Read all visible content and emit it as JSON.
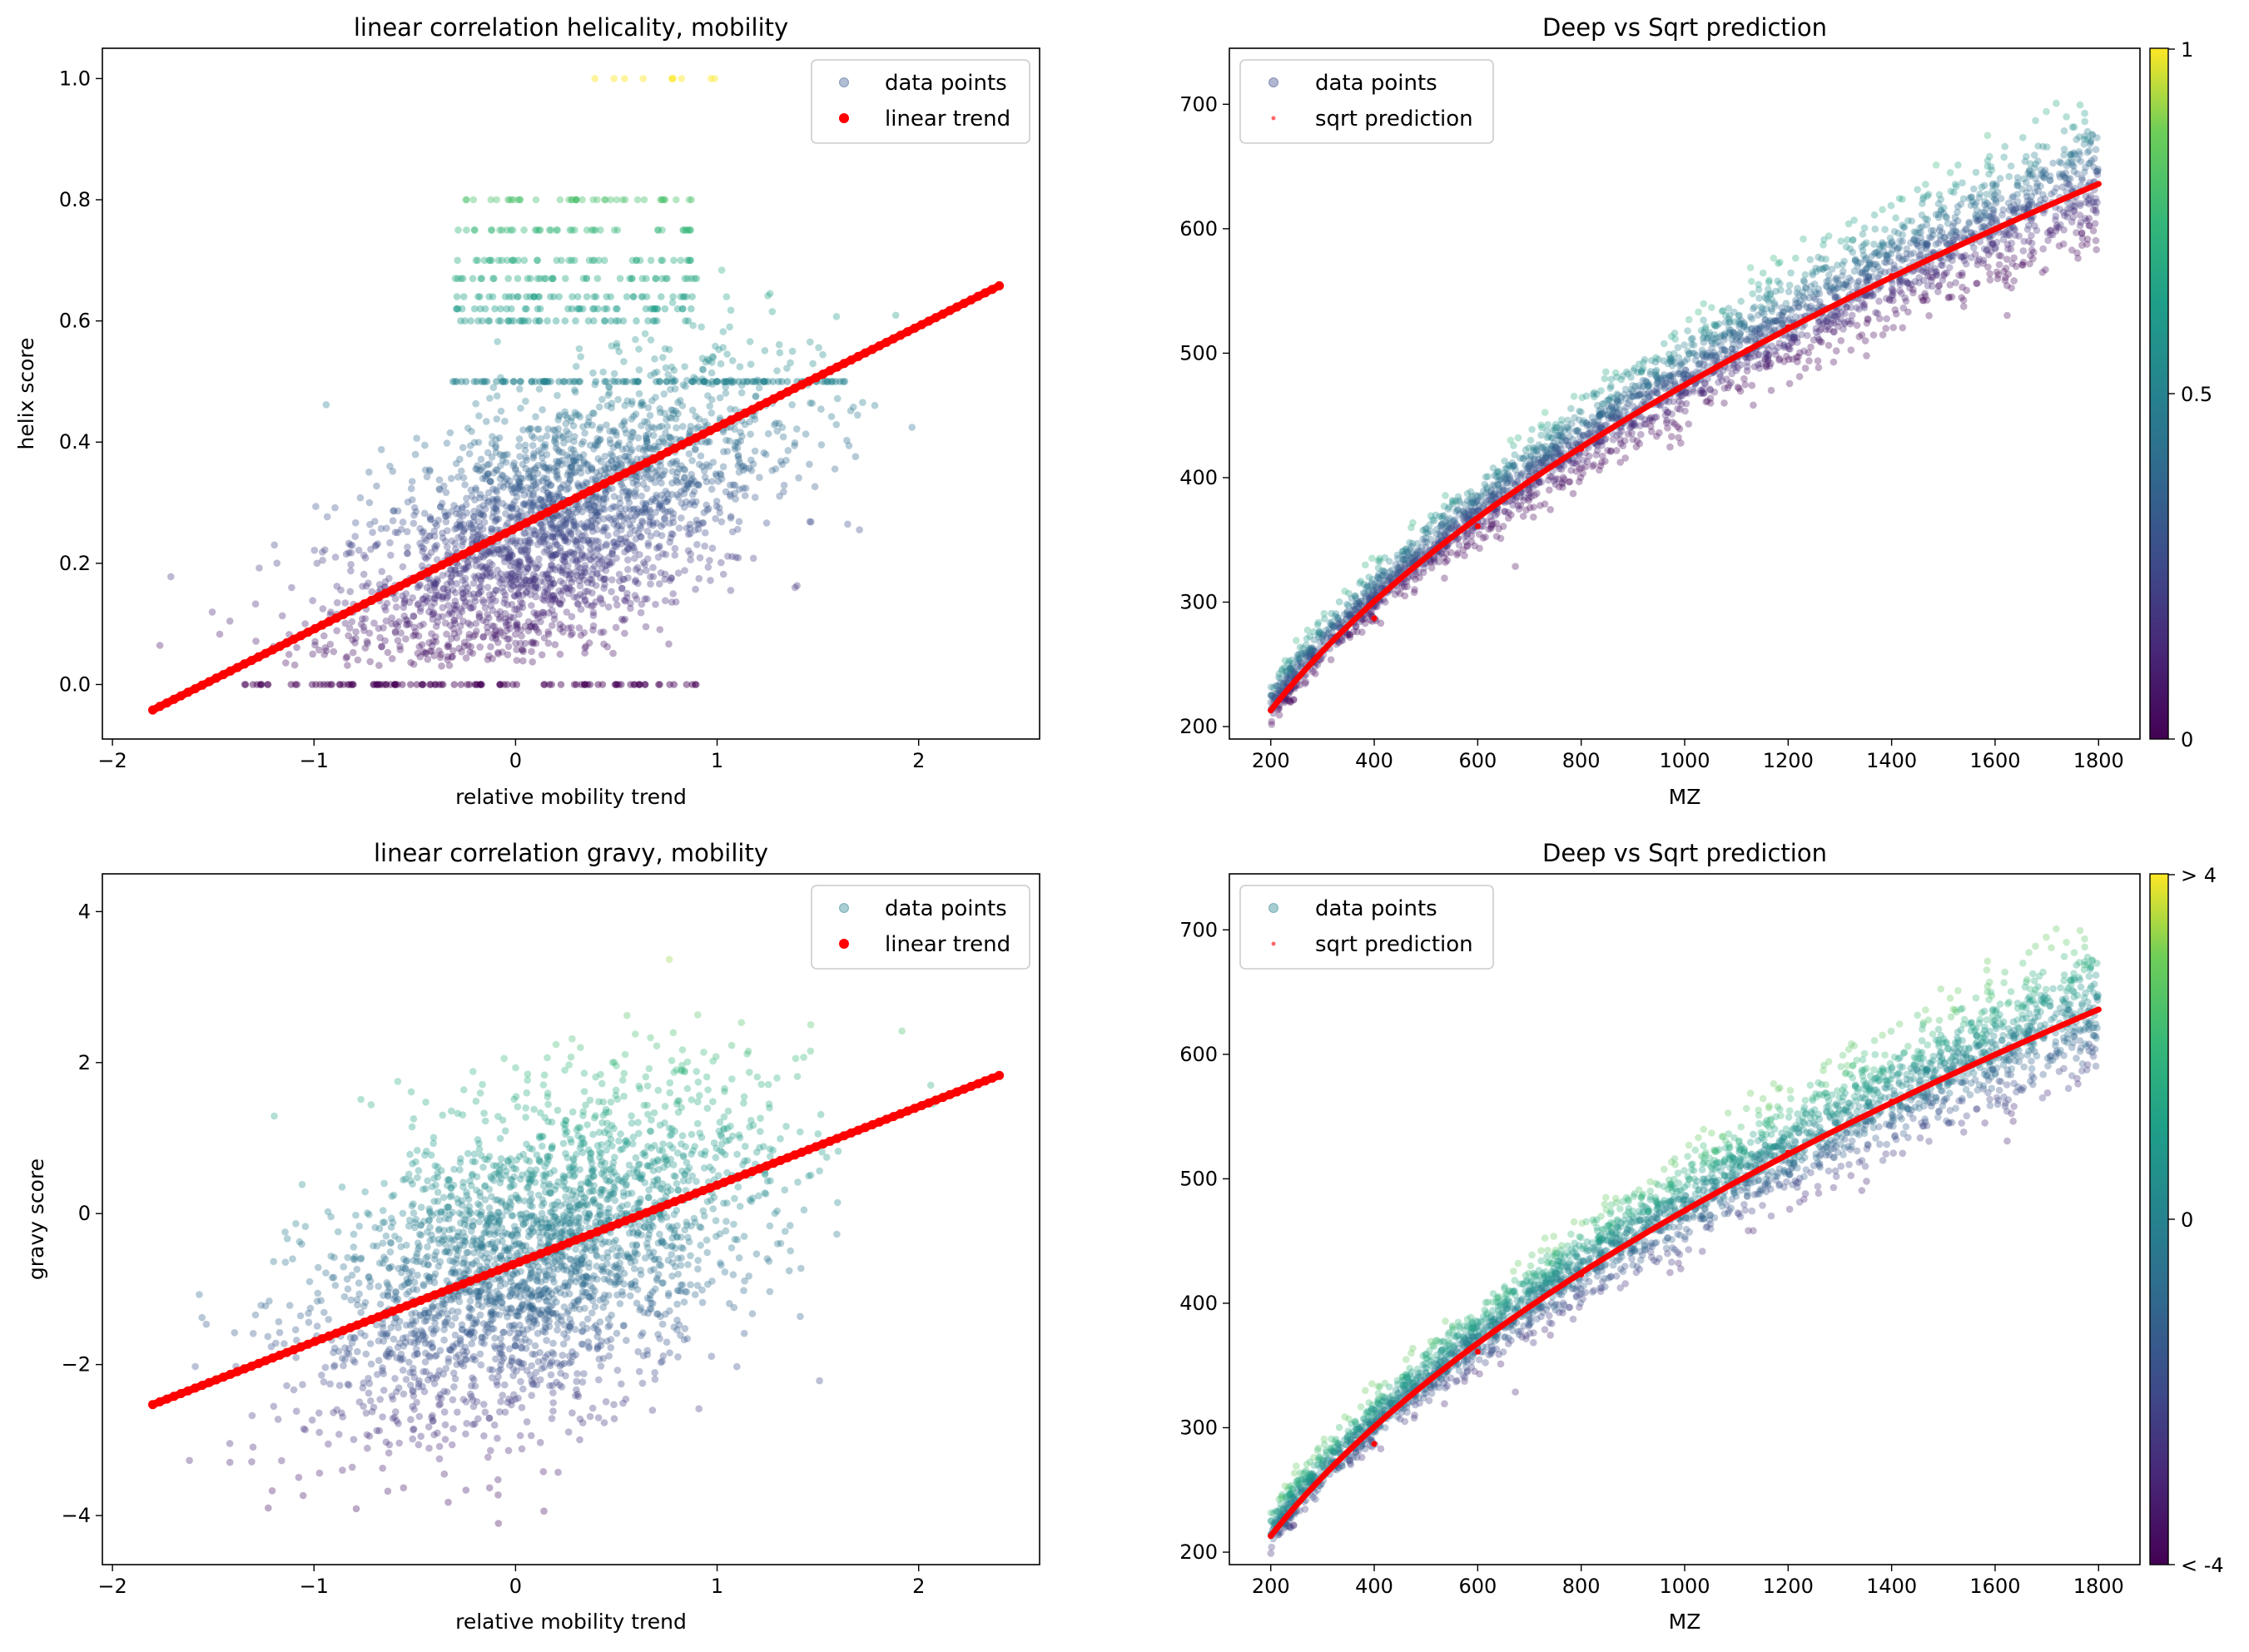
{
  "chart_data": [
    {
      "type": "scatter",
      "title": "linear correlation helicality, mobility",
      "xlabel": "relative mobility trend",
      "ylabel": "helix score",
      "xlim": [
        -2.05,
        2.6
      ],
      "ylim": [
        -0.09,
        1.05
      ],
      "xticks": [
        -2,
        -1,
        0,
        1,
        2
      ],
      "yticks": [
        0.0,
        0.2,
        0.4,
        0.6,
        0.8,
        1.0
      ],
      "xtick_labels": [
        "−2",
        "−1",
        "0",
        "1",
        "2"
      ],
      "ytick_labels": [
        "0.0",
        "0.2",
        "0.4",
        "0.6",
        "0.8",
        "1.0"
      ],
      "legend_position": "upper right",
      "grid": false,
      "series": [
        {
          "name": "data points",
          "kind": "scatter-cloud",
          "colormap": "viridis",
          "color_value": "y",
          "cmin": 0.0,
          "cmax": 1.0,
          "cloud": {
            "x_center": 0.15,
            "x_spread": 0.55,
            "slope": 0.16,
            "intercept": 0.22,
            "y_spread": 0.11,
            "y_min": 0.03,
            "y_max": 0.87
          },
          "bands": [
            {
              "y": 0.0,
              "x_range": [
                -1.35,
                0.9
              ]
            },
            {
              "y": 1.0,
              "x_range": [
                0.35,
                1.1
              ]
            },
            {
              "y": 0.5,
              "x_range": [
                -0.35,
                1.7
              ]
            }
          ]
        },
        {
          "name": "linear trend",
          "kind": "line-points",
          "color": "#ff0000",
          "x_range": [
            -1.8,
            2.4
          ],
          "y_range": [
            -0.042,
            0.658
          ]
        }
      ]
    },
    {
      "type": "scatter",
      "title": "Deep vs Sqrt prediction",
      "xlabel": "MZ",
      "ylabel": "",
      "xlim": [
        120,
        1880
      ],
      "ylim": [
        190,
        745
      ],
      "xticks": [
        200,
        400,
        600,
        800,
        1000,
        1200,
        1400,
        1600,
        1800
      ],
      "yticks": [
        200,
        300,
        400,
        500,
        600,
        700
      ],
      "xtick_labels": [
        "200",
        "400",
        "600",
        "800",
        "1000",
        "1200",
        "1400",
        "1600",
        "1800"
      ],
      "ytick_labels": [
        "200",
        "300",
        "400",
        "500",
        "600",
        "700"
      ],
      "legend_position": "upper left",
      "grid": false,
      "colorbar": {
        "colormap": "viridis",
        "ticks": [
          "0",
          "0.5",
          "1"
        ]
      },
      "series": [
        {
          "name": "data points",
          "kind": "scatter-cloud",
          "colormap": "viridis",
          "color_mode": "helix",
          "x_range": [
            200,
            1800
          ],
          "spread_at_200": 8,
          "spread_at_1800": 28
        },
        {
          "name": "sqrt prediction",
          "kind": "curve",
          "color": "#ff0000",
          "formula": "sqrt",
          "points": [
            [
              200,
              213
            ],
            [
              400,
              287
            ],
            [
              600,
              361
            ],
            [
              800,
              423
            ],
            [
              1000,
              474
            ],
            [
              1200,
              521
            ],
            [
              1400,
              562
            ],
            [
              1600,
              600
            ],
            [
              1800,
              636
            ]
          ]
        }
      ]
    },
    {
      "type": "scatter",
      "title": "linear correlation gravy, mobility",
      "xlabel": "relative mobility trend",
      "ylabel": "gravy score",
      "xlim": [
        -2.05,
        2.6
      ],
      "ylim": [
        -4.65,
        4.5
      ],
      "xticks": [
        -2,
        -1,
        0,
        1,
        2
      ],
      "yticks": [
        -4,
        -2,
        0,
        2,
        4
      ],
      "xtick_labels": [
        "−2",
        "−1",
        "0",
        "1",
        "2"
      ],
      "ytick_labels": [
        "−4",
        "−2",
        "0",
        "2",
        "4"
      ],
      "legend_position": "upper right",
      "grid": false,
      "series": [
        {
          "name": "data points",
          "kind": "scatter-cloud",
          "colormap": "viridis",
          "color_value": "y",
          "cmin": -4.2,
          "cmax": 4.1,
          "cloud": {
            "x_center": 0.1,
            "x_spread": 0.55,
            "slope": 1.0,
            "intercept": -0.7,
            "y_spread": 1.0,
            "y_min": -4.2,
            "y_max": 4.1
          }
        },
        {
          "name": "linear trend",
          "kind": "line-points",
          "color": "#ff0000",
          "x_range": [
            -1.8,
            2.4
          ],
          "y_range": [
            -2.53,
            1.83
          ]
        }
      ]
    },
    {
      "type": "scatter",
      "title": "Deep vs Sqrt prediction",
      "xlabel": "MZ",
      "ylabel": "",
      "xlim": [
        120,
        1880
      ],
      "ylim": [
        190,
        745
      ],
      "xticks": [
        200,
        400,
        600,
        800,
        1000,
        1200,
        1400,
        1600,
        1800
      ],
      "yticks": [
        200,
        300,
        400,
        500,
        600,
        700
      ],
      "xtick_labels": [
        "200",
        "400",
        "600",
        "800",
        "1000",
        "1200",
        "1400",
        "1600",
        "1800"
      ],
      "ytick_labels": [
        "200",
        "300",
        "400",
        "500",
        "600",
        "700"
      ],
      "legend_position": "upper left",
      "grid": false,
      "colorbar": {
        "colormap": "viridis",
        "ticks": [
          "< -4",
          "0",
          "> 4"
        ]
      },
      "series": [
        {
          "name": "data points",
          "kind": "scatter-cloud",
          "colormap": "viridis",
          "color_mode": "gravy",
          "x_range": [
            200,
            1800
          ],
          "spread_at_200": 8,
          "spread_at_1800": 28
        },
        {
          "name": "sqrt prediction",
          "kind": "curve",
          "color": "#ff0000",
          "formula": "sqrt",
          "points": [
            [
              200,
              213
            ],
            [
              400,
              287
            ],
            [
              600,
              361
            ],
            [
              800,
              423
            ],
            [
              1000,
              474
            ],
            [
              1200,
              521
            ],
            [
              1400,
              562
            ],
            [
              1600,
              600
            ],
            [
              1800,
              636
            ]
          ]
        }
      ]
    }
  ],
  "colors": {
    "trend": "#ff0000",
    "axis": "#000000",
    "legend_border": "#cccccc"
  }
}
